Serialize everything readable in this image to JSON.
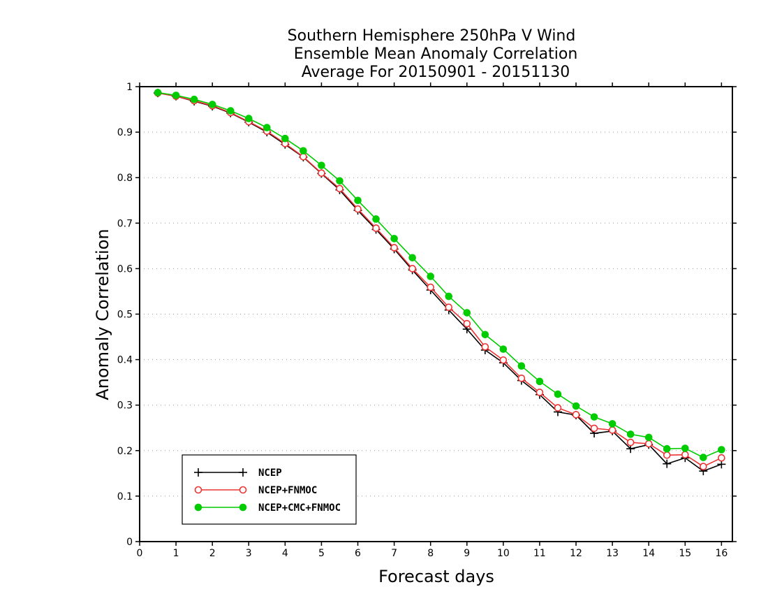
{
  "chart_data": {
    "type": "line",
    "title_lines": [
      "Southern Hemisphere 250hPa V Wind",
      "Ensemble Mean Anomaly Correlation",
      "Average For 20150901 - 20151130"
    ],
    "xlabel": "Forecast days",
    "ylabel": "Anomaly Correlation",
    "xlim": [
      0,
      16.3
    ],
    "ylim": [
      0,
      1
    ],
    "x_ticks": [
      "0",
      "1",
      "2",
      "3",
      "4",
      "5",
      "6",
      "7",
      "8",
      "9",
      "10",
      "11",
      "12",
      "13",
      "14",
      "15",
      "16"
    ],
    "y_ticks": [
      "0",
      "0.1",
      "0.2",
      "0.3",
      "0.4",
      "0.5",
      "0.6",
      "0.7",
      "0.8",
      "0.9",
      "1"
    ],
    "grid": "horizontal dotted",
    "legend_position": "bottom-left",
    "x": [
      0.5,
      1,
      1.5,
      2,
      2.5,
      3,
      3.5,
      4,
      4.5,
      5,
      5.5,
      6,
      6.5,
      7,
      7.5,
      8,
      8.5,
      9,
      9.5,
      10,
      10.5,
      11,
      11.5,
      12,
      12.5,
      13,
      13.5,
      14,
      14.5,
      15,
      15.5,
      16
    ],
    "series": [
      {
        "name": "NCEP",
        "color": "#000000",
        "marker": "plus",
        "values": [
          0.986,
          0.979,
          0.968,
          0.957,
          0.942,
          0.922,
          0.9,
          0.873,
          0.845,
          0.809,
          0.773,
          0.728,
          0.686,
          0.643,
          0.597,
          0.553,
          0.509,
          0.467,
          0.421,
          0.393,
          0.354,
          0.323,
          0.285,
          0.278,
          0.238,
          0.243,
          0.204,
          0.213,
          0.171,
          0.184,
          0.155,
          0.17
        ]
      },
      {
        "name": "NCEP+FNMOC",
        "color": "#ee3333",
        "marker": "open-circle",
        "values": [
          0.986,
          0.979,
          0.969,
          0.958,
          0.943,
          0.923,
          0.902,
          0.875,
          0.846,
          0.81,
          0.776,
          0.731,
          0.689,
          0.646,
          0.6,
          0.559,
          0.515,
          0.479,
          0.428,
          0.399,
          0.359,
          0.328,
          0.294,
          0.279,
          0.249,
          0.245,
          0.218,
          0.215,
          0.19,
          0.191,
          0.165,
          0.184
        ]
      },
      {
        "name": "NCEP+CMC+FNMOC",
        "color": "#00cc00",
        "marker": "filled-circle",
        "values": [
          0.987,
          0.981,
          0.972,
          0.961,
          0.947,
          0.93,
          0.91,
          0.886,
          0.859,
          0.827,
          0.793,
          0.75,
          0.709,
          0.666,
          0.624,
          0.583,
          0.539,
          0.503,
          0.455,
          0.423,
          0.386,
          0.352,
          0.324,
          0.298,
          0.274,
          0.259,
          0.236,
          0.229,
          0.204,
          0.205,
          0.185,
          0.202
        ]
      }
    ]
  }
}
